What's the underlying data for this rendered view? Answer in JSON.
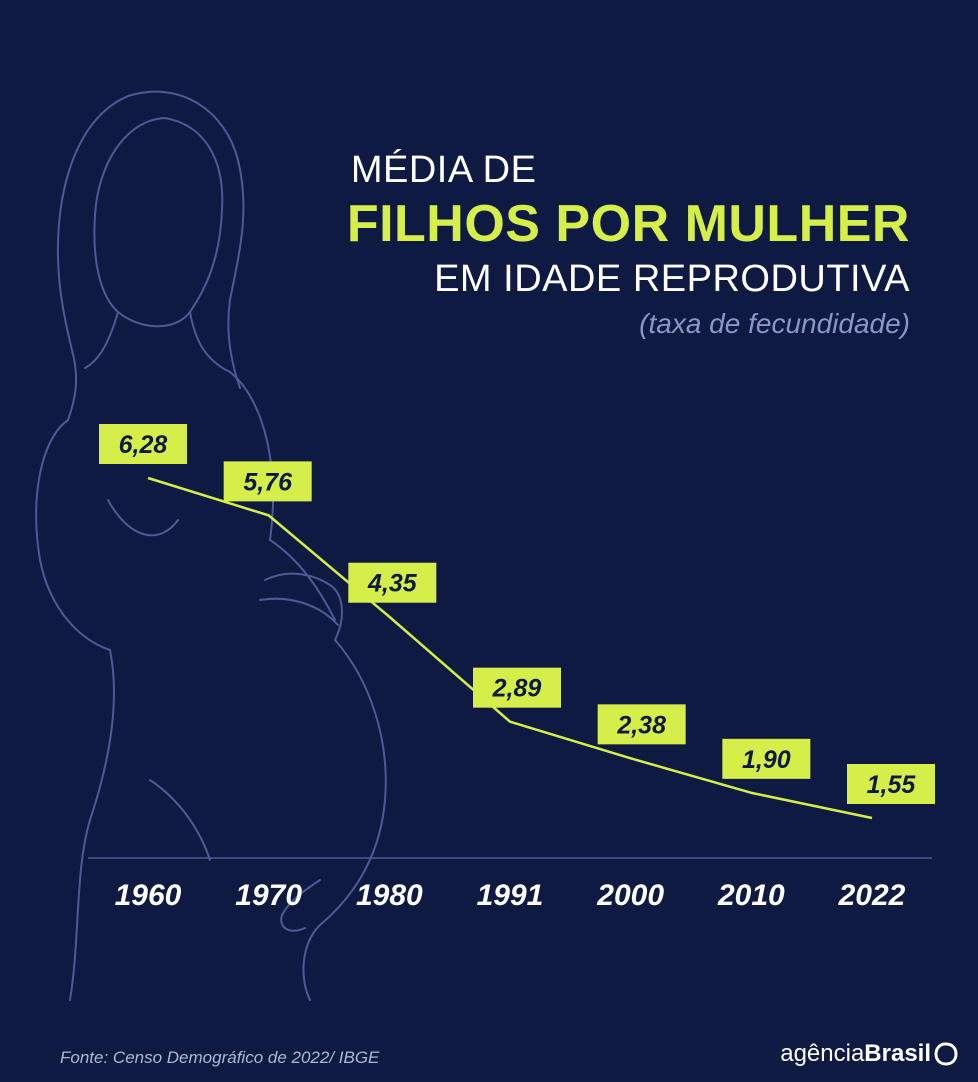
{
  "title": {
    "line1": "MÉDIA DE",
    "line2": "FILHOS POR MULHER",
    "line3": "EM IDADE REPRODUTIVA",
    "line4": "(taxa de fecundidade)"
  },
  "source": "Fonte:  Censo Demográfico de 2022/ IBGE",
  "logo": {
    "regular": "agência",
    "bold": "Brasil",
    "mark_icon": "agencia-brasil-logo-icon"
  },
  "colors": {
    "background": "#0f1a42",
    "accent": "#d6ee4a",
    "line": "#d6ee4a",
    "silhouette": "#4c5a96",
    "axis": "#4c5a96",
    "label_text": "#0f1a42"
  },
  "chart_data": {
    "type": "line",
    "categories": [
      "1960",
      "1970",
      "1980",
      "1991",
      "2000",
      "2010",
      "2022"
    ],
    "values": [
      6.28,
      5.76,
      4.35,
      2.89,
      2.38,
      1.9,
      1.55
    ],
    "value_labels": [
      "6,28",
      "5,76",
      "4,35",
      "2,89",
      "2,38",
      "1,90",
      "1,55"
    ],
    "grid": false,
    "legend": "none"
  }
}
